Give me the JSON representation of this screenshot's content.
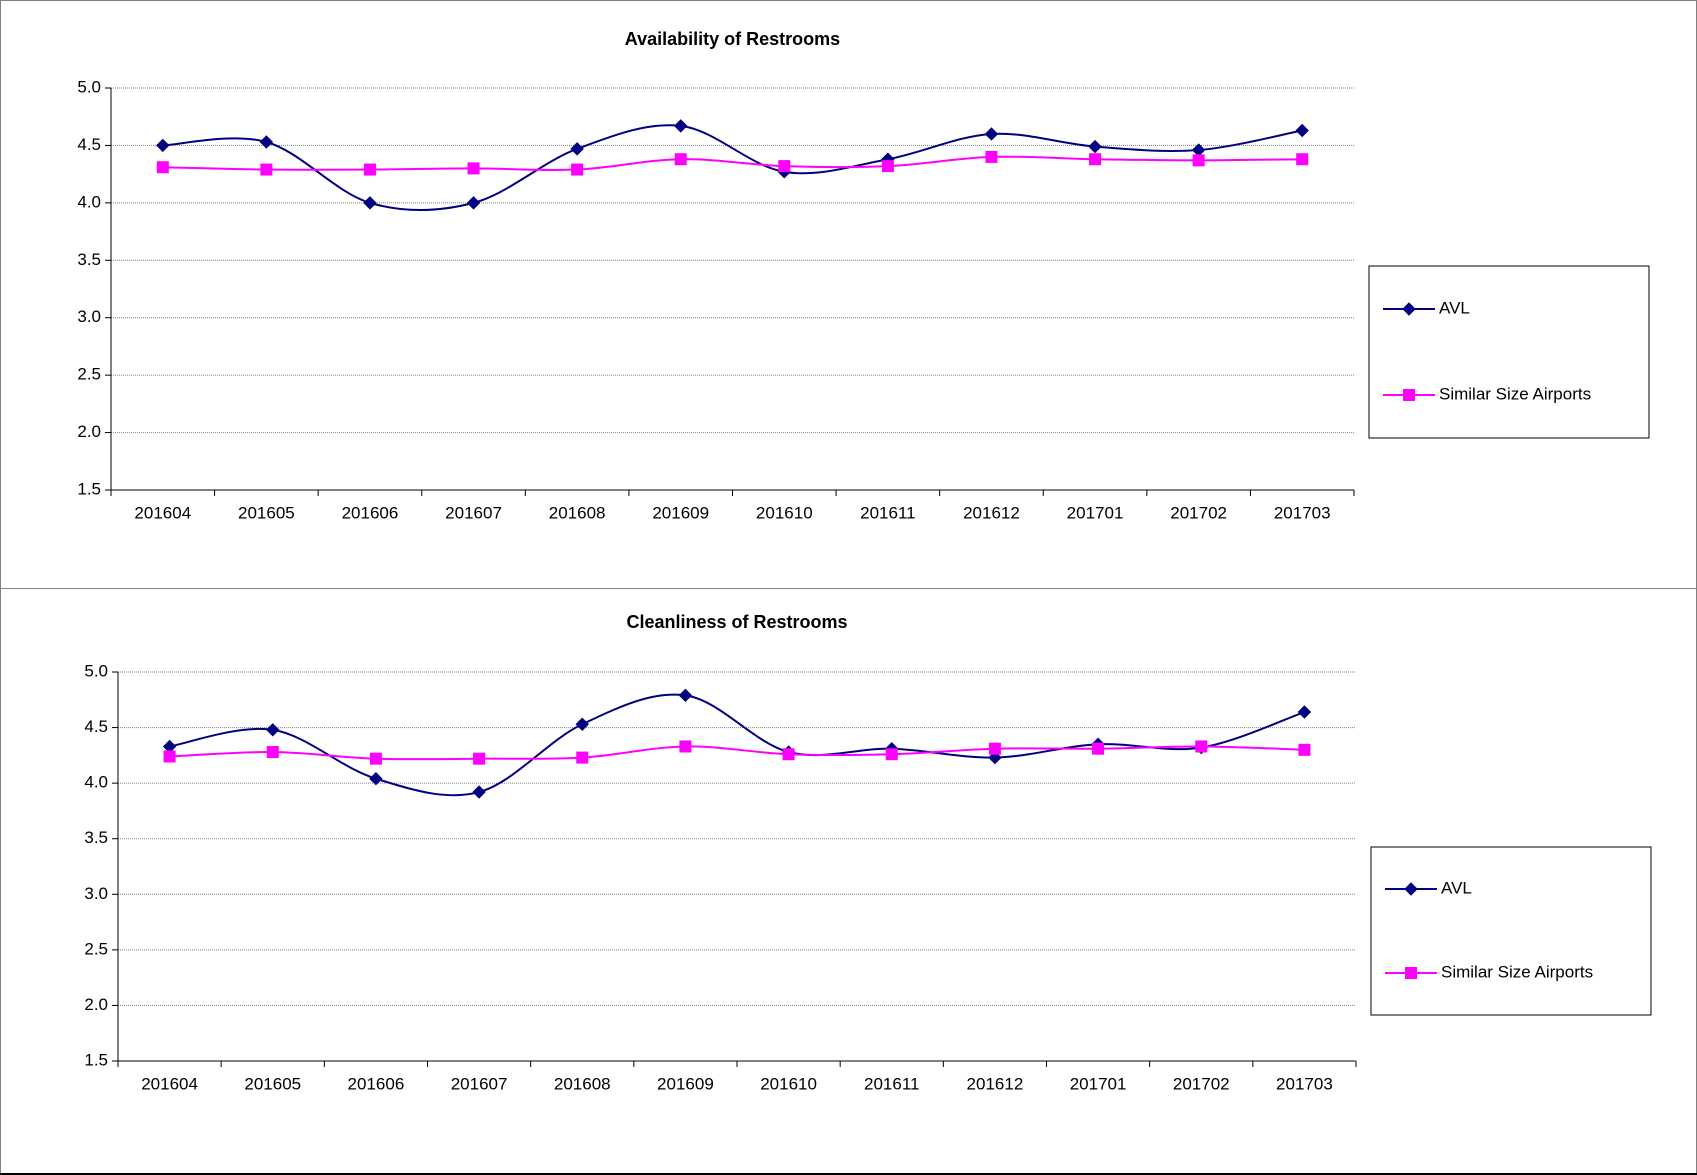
{
  "chart_data": [
    {
      "type": "line",
      "title": "Availability of Restrooms",
      "categories": [
        "201604",
        "201605",
        "201606",
        "201607",
        "201608",
        "201609",
        "201610",
        "201611",
        "201612",
        "201701",
        "201702",
        "201703"
      ],
      "series": [
        {
          "name": "AVL",
          "color": "#000080",
          "marker": "diamond",
          "values": [
            4.5,
            4.53,
            4.0,
            4.0,
            4.47,
            4.67,
            4.27,
            4.38,
            4.6,
            4.49,
            4.46,
            4.63
          ]
        },
        {
          "name": "Similar Size Airports",
          "color": "#ff00ff",
          "marker": "square",
          "values": [
            4.31,
            4.29,
            4.29,
            4.3,
            4.29,
            4.38,
            4.32,
            4.32,
            4.4,
            4.38,
            4.37,
            4.38
          ]
        }
      ],
      "ylim": [
        1.5,
        5.0
      ],
      "yticks": [
        {
          "value": 1.5,
          "label": "1.5"
        },
        {
          "value": 2,
          "label": "2.0"
        },
        {
          "value": 2.5,
          "label": "2.5"
        },
        {
          "value": 3,
          "label": "3.0"
        },
        {
          "value": 3.5,
          "label": "3.5"
        },
        {
          "value": 4,
          "label": "4.0"
        },
        {
          "value": 4.5,
          "label": "4.5"
        },
        {
          "value": 5,
          "label": "5.0"
        }
      ],
      "grid": true,
      "smooth": true,
      "legend": "right"
    },
    {
      "type": "line",
      "title": "Cleanliness of Restrooms",
      "categories": [
        "201604",
        "201605",
        "201606",
        "201607",
        "201608",
        "201609",
        "201610",
        "201611",
        "201612",
        "201701",
        "201702",
        "201703"
      ],
      "series": [
        {
          "name": "AVL",
          "color": "#000080",
          "marker": "diamond",
          "values": [
            4.33,
            4.48,
            4.04,
            3.92,
            4.53,
            4.79,
            4.28,
            4.31,
            4.23,
            4.35,
            4.32,
            4.64
          ]
        },
        {
          "name": "Similar Size Airports",
          "color": "#ff00ff",
          "marker": "square",
          "values": [
            4.24,
            4.28,
            4.22,
            4.22,
            4.23,
            4.33,
            4.26,
            4.26,
            4.31,
            4.31,
            4.33,
            4.3
          ]
        }
      ],
      "ylim": [
        1.5,
        5.0
      ],
      "yticks": [
        {
          "value": 1.5,
          "label": "1.5"
        },
        {
          "value": 2,
          "label": "2.0"
        },
        {
          "value": 2.5,
          "label": "2.5"
        },
        {
          "value": 3,
          "label": "3.0"
        },
        {
          "value": 3.5,
          "label": "3.5"
        },
        {
          "value": 4,
          "label": "4.0"
        },
        {
          "value": 4.5,
          "label": "4.5"
        },
        {
          "value": 5,
          "label": "5.0"
        }
      ],
      "grid": true,
      "smooth": true,
      "legend": "right"
    }
  ]
}
